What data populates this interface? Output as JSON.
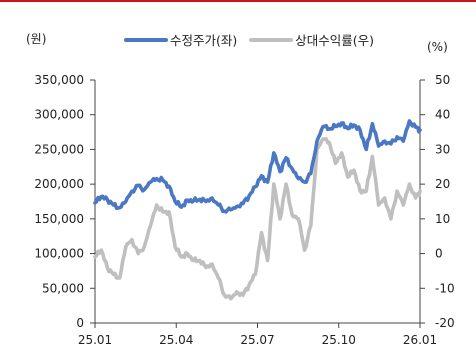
{
  "chart_data": {
    "type": "line",
    "left_unit": "(원)",
    "right_unit": "(%)",
    "x_tick_labels": [
      "25.01",
      "25.04",
      "25.07",
      "25.10",
      "26.01"
    ],
    "y_left": {
      "ticks": [
        "0",
        "50,000",
        "100,000",
        "150,000",
        "200,000",
        "250,000",
        "300,000",
        "350,000"
      ],
      "lim": [
        0,
        350000
      ]
    },
    "y_right": {
      "ticks": [
        "-20",
        "-10",
        "0",
        "10",
        "20",
        "30",
        "40",
        "50"
      ],
      "lim": [
        -20,
        50
      ]
    },
    "x_range": [
      "2025-01-01",
      "2026-01-05"
    ],
    "grid": false,
    "legend_position": "top",
    "series": [
      {
        "name": "수정주가(좌)",
        "axis": "left",
        "color": "#4a78c2",
        "points": [
          [
            "2025-01-01",
            173000
          ],
          [
            "2025-01-08",
            182000
          ],
          [
            "2025-01-15",
            178000
          ],
          [
            "2025-01-22",
            170000
          ],
          [
            "2025-01-29",
            166000
          ],
          [
            "2025-02-05",
            175000
          ],
          [
            "2025-02-12",
            190000
          ],
          [
            "2025-02-19",
            198000
          ],
          [
            "2025-02-26",
            192000
          ],
          [
            "2025-03-05",
            203000
          ],
          [
            "2025-03-12",
            208000
          ],
          [
            "2025-03-19",
            206000
          ],
          [
            "2025-03-26",
            197000
          ],
          [
            "2025-04-02",
            175000
          ],
          [
            "2025-04-09",
            167000
          ],
          [
            "2025-04-16",
            177000
          ],
          [
            "2025-04-23",
            176000
          ],
          [
            "2025-04-30",
            178000
          ],
          [
            "2025-05-07",
            175000
          ],
          [
            "2025-05-14",
            180000
          ],
          [
            "2025-05-21",
            170000
          ],
          [
            "2025-05-28",
            161000
          ],
          [
            "2025-06-04",
            163000
          ],
          [
            "2025-06-11",
            168000
          ],
          [
            "2025-06-18",
            172000
          ],
          [
            "2025-06-25",
            183000
          ],
          [
            "2025-07-02",
            196000
          ],
          [
            "2025-07-09",
            212000
          ],
          [
            "2025-07-16",
            203000
          ],
          [
            "2025-07-23",
            245000
          ],
          [
            "2025-07-30",
            218000
          ],
          [
            "2025-08-06",
            238000
          ],
          [
            "2025-08-13",
            222000
          ],
          [
            "2025-08-20",
            208000
          ],
          [
            "2025-08-27",
            203000
          ],
          [
            "2025-09-03",
            215000
          ],
          [
            "2025-09-10",
            262000
          ],
          [
            "2025-09-17",
            283000
          ],
          [
            "2025-09-24",
            280000
          ],
          [
            "2025-10-01",
            283000
          ],
          [
            "2025-10-08",
            288000
          ],
          [
            "2025-10-15",
            280000
          ],
          [
            "2025-10-22",
            285000
          ],
          [
            "2025-10-29",
            278000
          ],
          [
            "2025-11-05",
            250000
          ],
          [
            "2025-11-12",
            287000
          ],
          [
            "2025-11-19",
            255000
          ],
          [
            "2025-11-26",
            262000
          ],
          [
            "2025-12-03",
            258000
          ],
          [
            "2025-12-10",
            268000
          ],
          [
            "2025-12-17",
            262000
          ],
          [
            "2025-12-24",
            291000
          ],
          [
            "2025-12-31",
            282000
          ],
          [
            "2026-01-05",
            278000
          ]
        ]
      },
      {
        "name": "상대수익률(우)",
        "axis": "right",
        "color": "#bfbfbf",
        "points": [
          [
            "2025-01-01",
            -1
          ],
          [
            "2025-01-08",
            1
          ],
          [
            "2025-01-15",
            -4
          ],
          [
            "2025-01-22",
            -6
          ],
          [
            "2025-01-29",
            -7
          ],
          [
            "2025-02-05",
            2
          ],
          [
            "2025-02-12",
            4
          ],
          [
            "2025-02-19",
            0
          ],
          [
            "2025-02-26",
            2
          ],
          [
            "2025-03-05",
            8
          ],
          [
            "2025-03-12",
            14
          ],
          [
            "2025-03-19",
            12
          ],
          [
            "2025-03-26",
            12
          ],
          [
            "2025-04-02",
            2
          ],
          [
            "2025-04-09",
            -1
          ],
          [
            "2025-04-16",
            0
          ],
          [
            "2025-04-23",
            -2
          ],
          [
            "2025-04-30",
            -2
          ],
          [
            "2025-05-07",
            -4
          ],
          [
            "2025-05-14",
            -3
          ],
          [
            "2025-05-21",
            -7
          ],
          [
            "2025-05-28",
            -12
          ],
          [
            "2025-06-04",
            -13
          ],
          [
            "2025-06-11",
            -11
          ],
          [
            "2025-06-18",
            -12
          ],
          [
            "2025-06-25",
            -9
          ],
          [
            "2025-07-02",
            -6
          ],
          [
            "2025-07-09",
            6
          ],
          [
            "2025-07-16",
            -2
          ],
          [
            "2025-07-23",
            20
          ],
          [
            "2025-07-30",
            10
          ],
          [
            "2025-08-06",
            20
          ],
          [
            "2025-08-13",
            11
          ],
          [
            "2025-08-20",
            10
          ],
          [
            "2025-08-27",
            1
          ],
          [
            "2025-09-03",
            8
          ],
          [
            "2025-09-10",
            30
          ],
          [
            "2025-09-17",
            33
          ],
          [
            "2025-09-24",
            32
          ],
          [
            "2025-10-01",
            26
          ],
          [
            "2025-10-08",
            29
          ],
          [
            "2025-10-15",
            22
          ],
          [
            "2025-10-22",
            24
          ],
          [
            "2025-10-29",
            18
          ],
          [
            "2025-11-05",
            18
          ],
          [
            "2025-11-12",
            28
          ],
          [
            "2025-11-19",
            14
          ],
          [
            "2025-11-26",
            16
          ],
          [
            "2025-12-03",
            10
          ],
          [
            "2025-12-10",
            18
          ],
          [
            "2025-12-17",
            14
          ],
          [
            "2025-12-24",
            20
          ],
          [
            "2025-12-31",
            16
          ],
          [
            "2026-01-05",
            18
          ]
        ]
      }
    ]
  }
}
